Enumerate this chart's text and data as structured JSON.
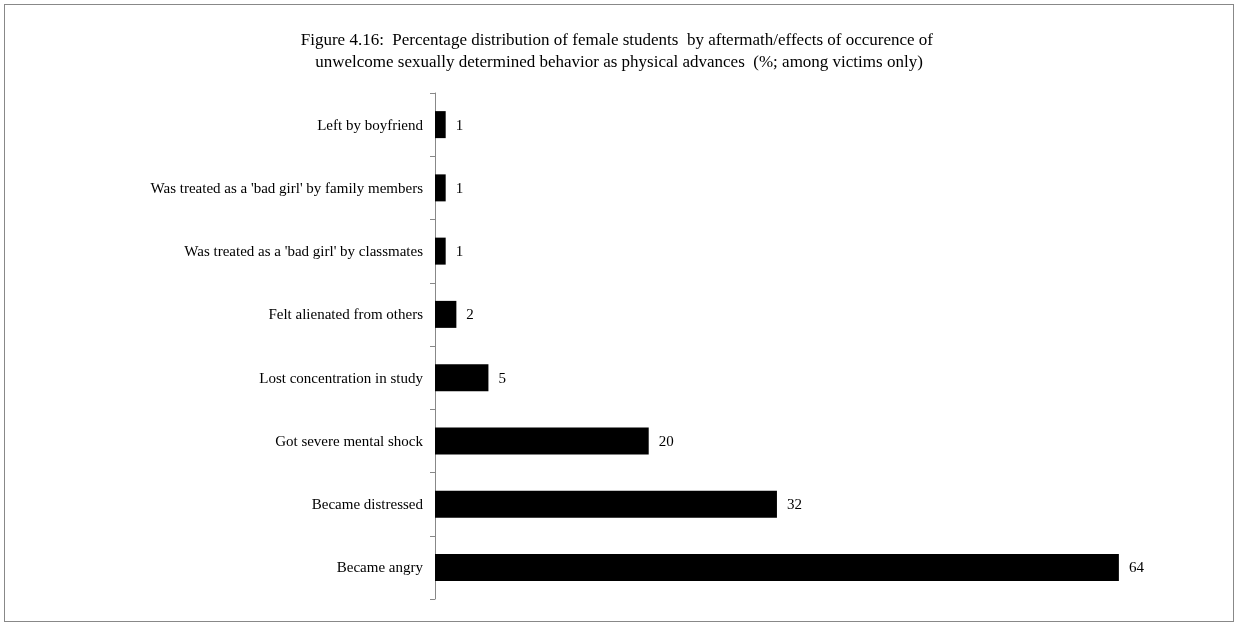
{
  "chart_data": {
    "type": "bar",
    "orientation": "horizontal",
    "title": "Figure 4.16:  Percentage distribution of female students  by aftermath/effects of occurence of unwelcome sexually determined behavior as physical advances  (%; among victims only)",
    "categories": [
      "Left by boyfriend",
      "Was treated as a 'bad girl' by family members",
      "Was treated as a 'bad girl' by classmates",
      "Felt alienated from others",
      "Lost concentration in study",
      "Got severe mental shock",
      "Became distressed",
      "Became angry"
    ],
    "values": [
      1,
      1,
      1,
      2,
      5,
      20,
      32,
      64
    ],
    "color": "#000000",
    "data_labels": true
  }
}
